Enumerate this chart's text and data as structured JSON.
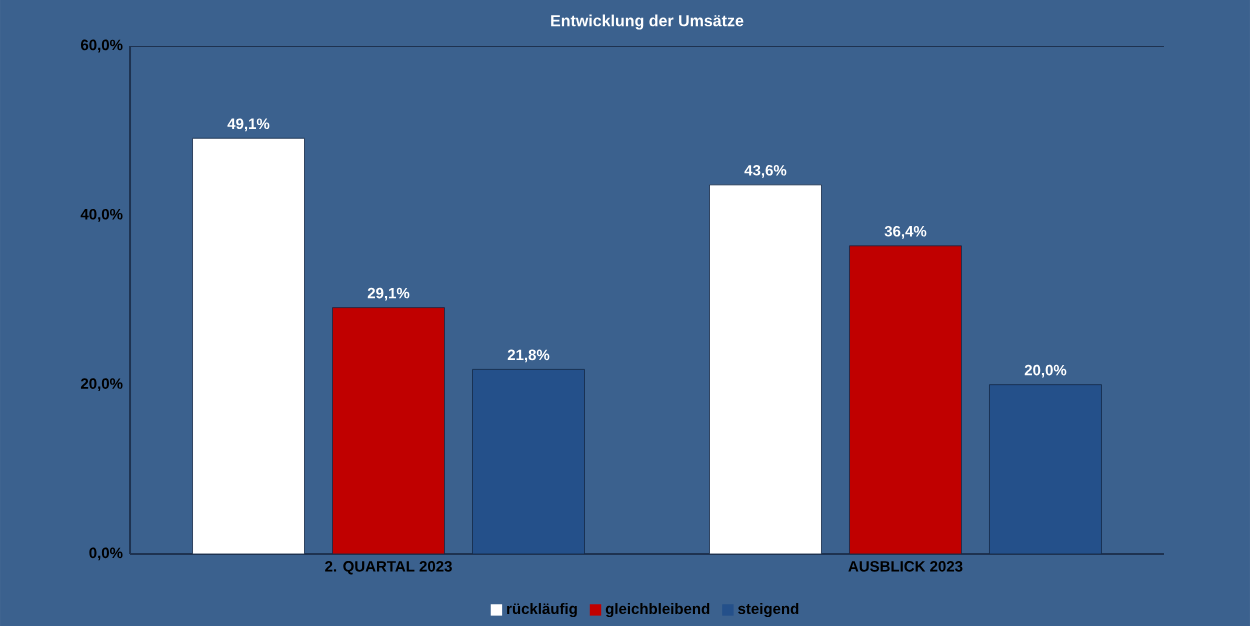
{
  "chart_data": {
    "type": "bar",
    "title": "Entwicklung der Umsätze",
    "categories": [
      "2. QUARTAL 2023",
      "AUSBLICK 2023"
    ],
    "series": [
      {
        "name": "rückläufig",
        "color": "#ffffff",
        "values": [
          49.1,
          43.6
        ],
        "value_labels": [
          "49,1%",
          "43,6%"
        ]
      },
      {
        "name": "gleichbleibend",
        "color": "#c00000",
        "values": [
          29.1,
          36.4
        ],
        "value_labels": [
          "29,1%",
          "36,4%"
        ]
      },
      {
        "name": "steigend",
        "color": "#24508a",
        "values": [
          21.8,
          20.0
        ],
        "value_labels": [
          "21,8%",
          "20,0%"
        ]
      }
    ],
    "ylim": [
      0,
      60
    ],
    "yticks": [
      {
        "value": 0,
        "label": "0,0%"
      },
      {
        "value": 20,
        "label": "20,0%"
      },
      {
        "value": 40,
        "label": "40,0%"
      },
      {
        "value": 60,
        "label": "60,0%"
      }
    ],
    "legend": "bottom"
  }
}
